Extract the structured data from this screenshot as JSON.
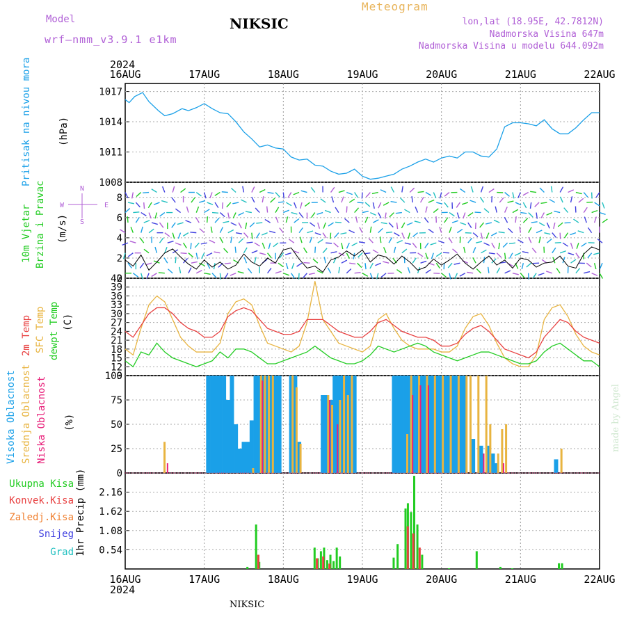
{
  "header": {
    "model_label": "Model",
    "model_name": "wrf–nmm_v3.9.1 e1km",
    "title": "NIKSIC",
    "meteogram": "Meteogram",
    "lonlat": "lon,lat (18.95E, 42.7812N)",
    "elevation": "Nadmorska Visina 647m",
    "model_elevation": "Nadmorska Visina u modelu 644.092m",
    "year_top": "2024",
    "year_bottom": "2024",
    "footer": "NIKSIC",
    "madeby": "made by Angel"
  },
  "colors": {
    "pressure": "#1aa0e8",
    "temp2m": "#e84040",
    "sfc": "#e8b440",
    "dew": "#22cc22",
    "high_cloud": "#1aa0e8",
    "mid_cloud": "#e8b440",
    "low_cloud": "#e8207a",
    "purple": "#b05fd6",
    "rain_total": "#22cc22",
    "rain_conv": "#e84040",
    "rain_frozen": "#f08030",
    "snow": "#4040e0",
    "hail": "#20c0c0"
  },
  "chart_data": [
    {
      "type": "line",
      "panel": "pressure",
      "ylabel": [
        "Pritisak na nivou mora",
        "(hPa)"
      ],
      "ylim": [
        1008,
        1017.8
      ],
      "yticks": [
        1008,
        1011,
        1014,
        1017
      ],
      "xticks": [
        "16AUG",
        "17AUG",
        "18AUG",
        "19AUG",
        "20AUG",
        "21AUG",
        "22AUG"
      ],
      "grid": true,
      "series": [
        {
          "x": [
            0,
            0.05,
            0.12,
            0.22,
            0.3,
            0.42,
            0.5,
            0.6,
            0.72,
            0.8,
            0.9,
            1.0,
            1.1,
            1.2,
            1.3,
            1.4,
            1.5,
            1.6,
            1.7,
            1.8,
            1.9,
            2.0,
            2.1,
            2.2,
            2.3,
            2.4,
            2.5,
            2.6,
            2.7,
            2.8,
            2.9,
            3.0,
            3.1,
            3.2,
            3.3,
            3.4,
            3.5,
            3.6,
            3.7,
            3.8,
            3.9,
            4.0,
            4.1,
            4.2,
            4.3,
            4.4,
            4.5,
            4.6,
            4.7,
            4.8,
            4.9,
            5.0,
            5.1,
            5.2,
            5.3,
            5.4,
            5.5,
            5.6,
            5.7,
            5.8,
            5.9,
            6.0
          ],
          "y": [
            1016.2,
            1015.9,
            1016.5,
            1016.9,
            1016.0,
            1015.1,
            1014.6,
            1014.8,
            1015.3,
            1015.1,
            1015.4,
            1015.8,
            1015.3,
            1014.9,
            1014.8,
            1014.0,
            1013.0,
            1012.3,
            1011.5,
            1011.7,
            1011.4,
            1011.3,
            1010.5,
            1010.2,
            1010.3,
            1009.7,
            1009.6,
            1009.1,
            1008.8,
            1008.9,
            1009.3,
            1008.6,
            1008.3,
            1008.4,
            1008.6,
            1008.8,
            1009.3,
            1009.6,
            1010.0,
            1010.3,
            1010.0,
            1010.4,
            1010.6,
            1010.4,
            1011.0,
            1011.0,
            1010.6,
            1010.5,
            1011.3,
            1013.5,
            1013.9,
            1013.9,
            1013.8,
            1013.6,
            1014.2,
            1013.3,
            1012.8,
            1012.8,
            1013.4,
            1014.2,
            1014.9,
            1014.9
          ]
        }
      ]
    },
    {
      "type": "scatter",
      "panel": "wind",
      "ylabel": [
        "10m Vjetar",
        "Brzina i Pravac",
        "(m/s)"
      ],
      "ylim": [
        0,
        9.5
      ],
      "yticks": [
        0,
        2,
        4,
        6,
        8
      ],
      "compass": [
        "N",
        "W",
        "E",
        "S",
        "<",
        ">",
        "|",
        "-"
      ],
      "series": [
        {
          "name": "speed",
          "x": [
            0,
            0.1,
            0.2,
            0.3,
            0.4,
            0.5,
            0.6,
            0.7,
            0.8,
            0.9,
            1.0,
            1.1,
            1.2,
            1.3,
            1.4,
            1.5,
            1.6,
            1.7,
            1.8,
            1.9,
            2.0,
            2.1,
            2.2,
            2.3,
            2.4,
            2.5,
            2.6,
            2.7,
            2.8,
            2.9,
            3.0,
            3.1,
            3.2,
            3.3,
            3.4,
            3.5,
            3.6,
            3.7,
            3.8,
            3.9,
            4.0,
            4.1,
            4.2,
            4.3,
            4.4,
            4.5,
            4.6,
            4.7,
            4.8,
            4.9,
            5.0,
            5.1,
            5.2,
            5.3,
            5.4,
            5.5,
            5.6,
            5.7,
            5.8,
            5.9,
            6.0
          ],
          "y": [
            1.8,
            1.2,
            2.3,
            0.8,
            1.6,
            2.5,
            2.9,
            2.1,
            1.4,
            0.9,
            1.8,
            1.1,
            1.6,
            0.9,
            1.3,
            2.4,
            1.6,
            1.2,
            2.0,
            1.5,
            2.8,
            3.0,
            1.9,
            1.0,
            1.2,
            0.6,
            1.8,
            2.1,
            2.7,
            2.2,
            2.8,
            1.6,
            2.3,
            2.1,
            1.4,
            2.2,
            1.6,
            0.8,
            1.1,
            1.9,
            1.3,
            1.8,
            2.4,
            1.5,
            0.9,
            1.6,
            2.2,
            1.3,
            1.8,
            1.0,
            2.0,
            1.8,
            1.1,
            1.5,
            1.6,
            2.2,
            1.2,
            1.0,
            2.4,
            3.1,
            2.8
          ]
        }
      ]
    },
    {
      "type": "line",
      "panel": "temperature",
      "ylabel": [
        "2m Temp",
        "SFC Temp",
        "dewpt Temp",
        "(C)"
      ],
      "ylim": [
        9,
        42
      ],
      "yticks": [
        9,
        12,
        15,
        18,
        21,
        24,
        27,
        30,
        33,
        36,
        39,
        42
      ],
      "series": [
        {
          "name": "2m Temp",
          "x": [
            0,
            0.1,
            0.2,
            0.3,
            0.4,
            0.5,
            0.6,
            0.7,
            0.8,
            0.9,
            1.0,
            1.1,
            1.2,
            1.3,
            1.4,
            1.5,
            1.6,
            1.7,
            1.8,
            1.9,
            2.0,
            2.1,
            2.2,
            2.3,
            2.4,
            2.5,
            2.6,
            2.7,
            2.8,
            2.9,
            3.0,
            3.1,
            3.2,
            3.3,
            3.4,
            3.5,
            3.6,
            3.7,
            3.8,
            3.9,
            4.0,
            4.1,
            4.2,
            4.3,
            4.4,
            4.5,
            4.6,
            4.7,
            4.8,
            4.9,
            5.0,
            5.1,
            5.2,
            5.3,
            5.4,
            5.5,
            5.6,
            5.7,
            5.8,
            5.9,
            6.0
          ],
          "y": [
            24,
            22,
            26,
            30,
            32,
            32,
            30,
            27,
            25,
            24,
            22,
            22,
            24,
            29,
            31,
            32,
            31,
            28,
            25,
            24,
            23,
            23,
            24,
            28,
            28,
            28,
            26,
            24,
            23,
            22,
            22,
            24,
            27,
            28,
            26,
            24,
            23,
            22,
            22,
            21,
            19,
            19,
            20,
            23,
            25,
            26,
            24,
            21,
            18,
            17,
            16,
            15,
            17,
            22,
            25,
            28,
            27,
            24,
            22,
            21,
            20
          ]
        },
        {
          "name": "SFC Temp",
          "x": [
            0,
            0.1,
            0.2,
            0.3,
            0.4,
            0.5,
            0.6,
            0.7,
            0.8,
            0.9,
            1.0,
            1.1,
            1.2,
            1.3,
            1.4,
            1.5,
            1.6,
            1.7,
            1.8,
            1.9,
            2.0,
            2.1,
            2.2,
            2.3,
            2.4,
            2.5,
            2.6,
            2.7,
            2.8,
            2.9,
            3.0,
            3.1,
            3.2,
            3.3,
            3.4,
            3.5,
            3.6,
            3.7,
            3.8,
            3.9,
            4.0,
            4.1,
            4.2,
            4.3,
            4.4,
            4.5,
            4.6,
            4.7,
            4.8,
            4.9,
            5.0,
            5.1,
            5.2,
            5.3,
            5.4,
            5.5,
            5.6,
            5.7,
            5.8,
            5.9,
            6.0
          ],
          "y": [
            18,
            16,
            25,
            33,
            36,
            34,
            28,
            22,
            19,
            17,
            17,
            17,
            20,
            30,
            34,
            35,
            33,
            26,
            20,
            19,
            18,
            17,
            19,
            27,
            41,
            28,
            24,
            20,
            19,
            18,
            17,
            19,
            28,
            30,
            25,
            21,
            19,
            18,
            18,
            18,
            17,
            17,
            19,
            25,
            29,
            30,
            26,
            20,
            15,
            13,
            12,
            12,
            16,
            28,
            32,
            33,
            29,
            23,
            19,
            17,
            16
          ]
        },
        {
          "name": "dewpt Temp",
          "x": [
            0,
            0.1,
            0.2,
            0.3,
            0.4,
            0.5,
            0.6,
            0.7,
            0.8,
            0.9,
            1.0,
            1.1,
            1.2,
            1.3,
            1.4,
            1.5,
            1.6,
            1.7,
            1.8,
            1.9,
            2.0,
            2.1,
            2.2,
            2.3,
            2.4,
            2.5,
            2.6,
            2.7,
            2.8,
            2.9,
            3.0,
            3.1,
            3.2,
            3.3,
            3.4,
            3.5,
            3.6,
            3.7,
            3.8,
            3.9,
            4.0,
            4.1,
            4.2,
            4.3,
            4.4,
            4.5,
            4.6,
            4.7,
            4.8,
            4.9,
            5.0,
            5.1,
            5.2,
            5.3,
            5.4,
            5.5,
            5.6,
            5.7,
            5.8,
            5.9,
            6.0
          ],
          "y": [
            14,
            12,
            17,
            16,
            20,
            17,
            15,
            14,
            13,
            12,
            13,
            14,
            17,
            15,
            18,
            18,
            17,
            15,
            13,
            13,
            14,
            15,
            16,
            17,
            19,
            17,
            15,
            14,
            13,
            13,
            14,
            16,
            19,
            18,
            17,
            18,
            19,
            20,
            19,
            17,
            16,
            15,
            14,
            15,
            16,
            17,
            17,
            16,
            15,
            14,
            13,
            13,
            14,
            17,
            19,
            20,
            18,
            16,
            14,
            14,
            12
          ]
        }
      ]
    },
    {
      "type": "bar",
      "panel": "clouds",
      "ylabel": [
        "Visoka Oblacnost",
        "Srednja Oblacnost",
        "Niska Oblacnost",
        "(%)"
      ],
      "ylim": [
        0,
        100
      ],
      "yticks": [
        0,
        25,
        50,
        75,
        100
      ],
      "series": [
        {
          "name": "Visoka Oblacnost",
          "x": [
            1.05,
            1.1,
            1.15,
            1.2,
            1.25,
            1.3,
            1.35,
            1.4,
            1.45,
            1.5,
            1.55,
            1.6,
            1.65,
            1.7,
            1.75,
            1.8,
            1.85,
            1.9,
            1.95,
            2.1,
            2.15,
            2.2,
            2.5,
            2.55,
            2.6,
            2.65,
            2.7,
            2.75,
            2.8,
            2.85,
            2.9,
            3.4,
            3.45,
            3.5,
            3.55,
            3.6,
            3.65,
            3.7,
            3.75,
            3.8,
            3.85,
            3.9,
            3.95,
            4.0,
            4.05,
            4.1,
            4.15,
            4.2,
            4.25,
            4.3,
            4.4,
            4.5,
            4.6,
            4.65,
            4.7,
            5.45
          ],
          "y": [
            100,
            100,
            100,
            100,
            100,
            75,
            100,
            50,
            25,
            32,
            32,
            54,
            100,
            100,
            100,
            100,
            100,
            100,
            100,
            100,
            100,
            32,
            80,
            80,
            75,
            100,
            100,
            100,
            100,
            100,
            100,
            100,
            100,
            100,
            100,
            100,
            100,
            100,
            100,
            100,
            100,
            100,
            100,
            100,
            100,
            100,
            100,
            100,
            100,
            100,
            35,
            28,
            28,
            20,
            10,
            14
          ]
        },
        {
          "name": "Srednja Oblacnost",
          "x": [
            0.48,
            1.6,
            1.7,
            1.75,
            1.8,
            1.85,
            2.1,
            2.15,
            2.2,
            2.55,
            2.6,
            2.7,
            2.75,
            2.8,
            2.85,
            3.55,
            3.6,
            3.7,
            3.8,
            3.9,
            4.0,
            4.1,
            4.2,
            4.3,
            4.35,
            4.45,
            4.55,
            4.6,
            4.7,
            4.75,
            4.8,
            5.5
          ],
          "y": [
            32,
            5,
            100,
            100,
            100,
            100,
            100,
            88,
            30,
            80,
            70,
            75,
            100,
            80,
            100,
            40,
            100,
            100,
            100,
            100,
            100,
            100,
            100,
            100,
            100,
            100,
            100,
            50,
            20,
            45,
            50,
            25
          ]
        },
        {
          "name": "Niska Oblacnost",
          "x": [
            0.5,
            1.7,
            2.55,
            2.65,
            3.0,
            3.6,
            3.7,
            3.8,
            4.5,
            4.75
          ],
          "y": [
            10,
            95,
            75,
            50,
            0,
            80,
            90,
            90,
            20,
            10
          ]
        }
      ]
    },
    {
      "type": "bar",
      "panel": "precipitation",
      "ylabel": [
        "1hr Precip (mm)"
      ],
      "legend": [
        "Ukupna Kisa",
        "Konvek.Kisa",
        "Zaledj.Kisa",
        "Snijeg",
        "Grad"
      ],
      "ylim": [
        0,
        2.7
      ],
      "yticks": [
        0.54,
        1.08,
        1.62,
        2.16
      ],
      "xticks": [
        "16AUG",
        "17AUG",
        "18AUG",
        "19AUG",
        "20AUG",
        "21AUG",
        "22AUG"
      ],
      "series": [
        {
          "name": "Ukupna Kisa",
          "x": [
            1.55,
            1.66,
            1.7,
            2.4,
            2.44,
            2.48,
            2.52,
            2.56,
            2.6,
            2.64,
            2.68,
            2.72,
            3.4,
            3.45,
            3.55,
            3.58,
            3.62,
            3.66,
            3.7,
            3.76,
            4.1,
            4.45,
            4.75,
            4.9,
            5.49,
            5.53
          ],
          "y": [
            0.06,
            1.25,
            0.2,
            0.6,
            0.3,
            0.5,
            0.6,
            0.25,
            0.4,
            0.22,
            0.6,
            0.35,
            0.32,
            0.7,
            1.7,
            1.85,
            1.6,
            2.62,
            1.25,
            0.4,
            0.02,
            0.5,
            0.06,
            0.02,
            0.16,
            0.16
          ]
        },
        {
          "name": "Konvek.Kisa",
          "x": [
            1.68,
            2.42,
            2.5,
            2.58,
            3.57,
            3.64,
            3.72
          ],
          "y": [
            0.4,
            0.3,
            0.35,
            0.15,
            1.2,
            1.0,
            0.6
          ]
        },
        {
          "name": "Zaledj.Kisa",
          "x": [],
          "y": []
        },
        {
          "name": "Snijeg",
          "x": [],
          "y": []
        },
        {
          "name": "Grad",
          "x": [],
          "y": []
        }
      ]
    }
  ]
}
